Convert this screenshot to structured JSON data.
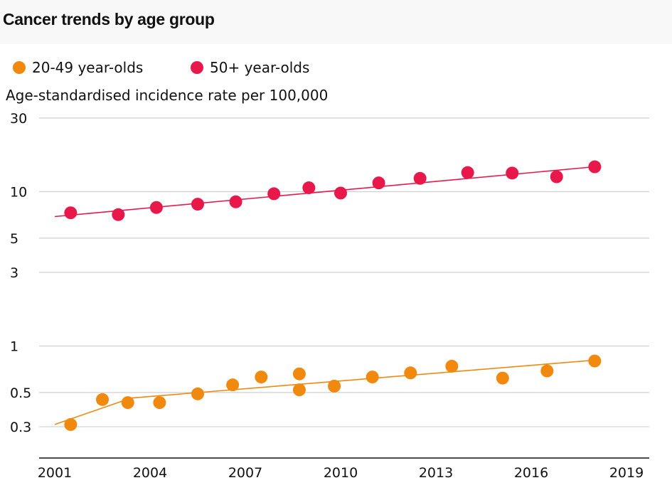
{
  "title": "Cancer trends by age group",
  "chart_data": {
    "type": "scatter",
    "ylabel": "Age-standardised incidence rate per 100,000",
    "y_scale": "log",
    "ylim": [
      0.18,
      30
    ],
    "xlim": [
      2001,
      2019
    ],
    "y_ticks": [
      30,
      10,
      5,
      3,
      1,
      0.5,
      0.3
    ],
    "x_ticks": [
      2001,
      2004,
      2007,
      2010,
      2013,
      2016,
      2019
    ],
    "grid": true,
    "legend_position": "top-left",
    "series": [
      {
        "name": "20-49 year-olds",
        "color": "#f0890e",
        "points": [
          {
            "x": 2001.5,
            "y": 0.31
          },
          {
            "x": 2002.5,
            "y": 0.45
          },
          {
            "x": 2003.3,
            "y": 0.43
          },
          {
            "x": 2004.3,
            "y": 0.43
          },
          {
            "x": 2005.5,
            "y": 0.49
          },
          {
            "x": 2006.6,
            "y": 0.56
          },
          {
            "x": 2007.5,
            "y": 0.63
          },
          {
            "x": 2008.7,
            "y": 0.66
          },
          {
            "x": 2008.7,
            "y": 0.52
          },
          {
            "x": 2009.8,
            "y": 0.55
          },
          {
            "x": 2011.0,
            "y": 0.63
          },
          {
            "x": 2012.2,
            "y": 0.67
          },
          {
            "x": 2013.5,
            "y": 0.74
          },
          {
            "x": 2015.1,
            "y": 0.62
          },
          {
            "x": 2016.5,
            "y": 0.69
          },
          {
            "x": 2018.0,
            "y": 0.8
          }
        ],
        "trend": [
          {
            "x": 2001.0,
            "y": 0.31
          },
          {
            "x": 2003.4,
            "y": 0.46
          },
          {
            "x": 2018.0,
            "y": 0.81
          }
        ]
      },
      {
        "name": "50+ year-olds",
        "color": "#e8194a",
        "points": [
          {
            "x": 2001.5,
            "y": 7.3
          },
          {
            "x": 2003.0,
            "y": 7.1
          },
          {
            "x": 2004.2,
            "y": 7.9
          },
          {
            "x": 2005.5,
            "y": 8.3
          },
          {
            "x": 2006.7,
            "y": 8.6
          },
          {
            "x": 2007.9,
            "y": 9.7
          },
          {
            "x": 2009.0,
            "y": 10.6
          },
          {
            "x": 2010.0,
            "y": 9.8
          },
          {
            "x": 2011.2,
            "y": 11.4
          },
          {
            "x": 2012.5,
            "y": 12.2
          },
          {
            "x": 2014.0,
            "y": 13.3
          },
          {
            "x": 2015.4,
            "y": 13.2
          },
          {
            "x": 2016.8,
            "y": 12.5
          },
          {
            "x": 2018.0,
            "y": 14.5
          }
        ],
        "trend": [
          {
            "x": 2001.0,
            "y": 6.9
          },
          {
            "x": 2018.0,
            "y": 14.5
          }
        ]
      }
    ]
  }
}
